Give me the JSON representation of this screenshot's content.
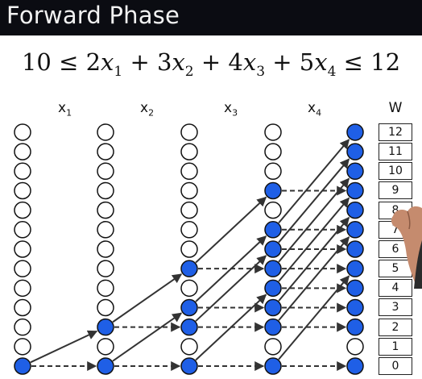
{
  "header": {
    "title": "Forward Phase"
  },
  "constraint": {
    "lower": "10",
    "terms": [
      {
        "coef": "2",
        "var": "x",
        "sub": "1"
      },
      {
        "coef": "3",
        "var": "x",
        "sub": "2"
      },
      {
        "coef": "4",
        "var": "x",
        "sub": "3"
      },
      {
        "coef": "5",
        "var": "x",
        "sub": "4"
      }
    ],
    "upper": "12"
  },
  "columns": [
    {
      "label": "x",
      "sub": "1"
    },
    {
      "label": "x",
      "sub": "2"
    },
    {
      "label": "x",
      "sub": "3"
    },
    {
      "label": "x",
      "sub": "4"
    }
  ],
  "w_header": "W",
  "w_values": [
    "12",
    "11",
    "10",
    "9",
    "8",
    "7",
    "6",
    "5",
    "4",
    "3",
    "2",
    "1",
    "0"
  ],
  "colors": {
    "filled_node": "#1f5fe6",
    "node_stroke": "#111111",
    "edge": "#333333",
    "header_bg": "#0b0c12"
  },
  "graph": {
    "reachable": [
      [
        0
      ],
      [
        0,
        2
      ],
      [
        0,
        2,
        3,
        5
      ],
      [
        0,
        2,
        3,
        4,
        5,
        6,
        7,
        9
      ],
      [
        0,
        2,
        3,
        4,
        5,
        6,
        7,
        8,
        9,
        10,
        11,
        12
      ]
    ],
    "edges": [
      {
        "from_col": 0,
        "from_w": 0,
        "to_w": 0,
        "type": "skip"
      },
      {
        "from_col": 0,
        "from_w": 0,
        "to_w": 2,
        "type": "take"
      },
      {
        "from_col": 1,
        "from_w": 0,
        "to_w": 0,
        "type": "skip"
      },
      {
        "from_col": 1,
        "from_w": 0,
        "to_w": 3,
        "type": "take"
      },
      {
        "from_col": 1,
        "from_w": 2,
        "to_w": 2,
        "type": "skip"
      },
      {
        "from_col": 1,
        "from_w": 2,
        "to_w": 5,
        "type": "take"
      },
      {
        "from_col": 2,
        "from_w": 0,
        "to_w": 0,
        "type": "skip"
      },
      {
        "from_col": 2,
        "from_w": 0,
        "to_w": 4,
        "type": "take"
      },
      {
        "from_col": 2,
        "from_w": 2,
        "to_w": 2,
        "type": "skip"
      },
      {
        "from_col": 2,
        "from_w": 2,
        "to_w": 6,
        "type": "take"
      },
      {
        "from_col": 2,
        "from_w": 3,
        "to_w": 3,
        "type": "skip"
      },
      {
        "from_col": 2,
        "from_w": 3,
        "to_w": 7,
        "type": "take"
      },
      {
        "from_col": 2,
        "from_w": 5,
        "to_w": 5,
        "type": "skip"
      },
      {
        "from_col": 2,
        "from_w": 5,
        "to_w": 9,
        "type": "take"
      },
      {
        "from_col": 3,
        "from_w": 0,
        "to_w": 0,
        "type": "skip"
      },
      {
        "from_col": 3,
        "from_w": 0,
        "to_w": 5,
        "type": "take"
      },
      {
        "from_col": 3,
        "from_w": 2,
        "to_w": 2,
        "type": "skip"
      },
      {
        "from_col": 3,
        "from_w": 2,
        "to_w": 7,
        "type": "take"
      },
      {
        "from_col": 3,
        "from_w": 3,
        "to_w": 3,
        "type": "skip"
      },
      {
        "from_col": 3,
        "from_w": 3,
        "to_w": 8,
        "type": "take"
      },
      {
        "from_col": 3,
        "from_w": 4,
        "to_w": 4,
        "type": "skip"
      },
      {
        "from_col": 3,
        "from_w": 4,
        "to_w": 9,
        "type": "take"
      },
      {
        "from_col": 3,
        "from_w": 5,
        "to_w": 5,
        "type": "skip"
      },
      {
        "from_col": 3,
        "from_w": 5,
        "to_w": 10,
        "type": "take"
      },
      {
        "from_col": 3,
        "from_w": 6,
        "to_w": 6,
        "type": "skip"
      },
      {
        "from_col": 3,
        "from_w": 6,
        "to_w": 11,
        "type": "take"
      },
      {
        "from_col": 3,
        "from_w": 7,
        "to_w": 7,
        "type": "skip"
      },
      {
        "from_col": 3,
        "from_w": 7,
        "to_w": 12,
        "type": "take"
      },
      {
        "from_col": 3,
        "from_w": 9,
        "to_w": 9,
        "type": "skip"
      }
    ]
  }
}
